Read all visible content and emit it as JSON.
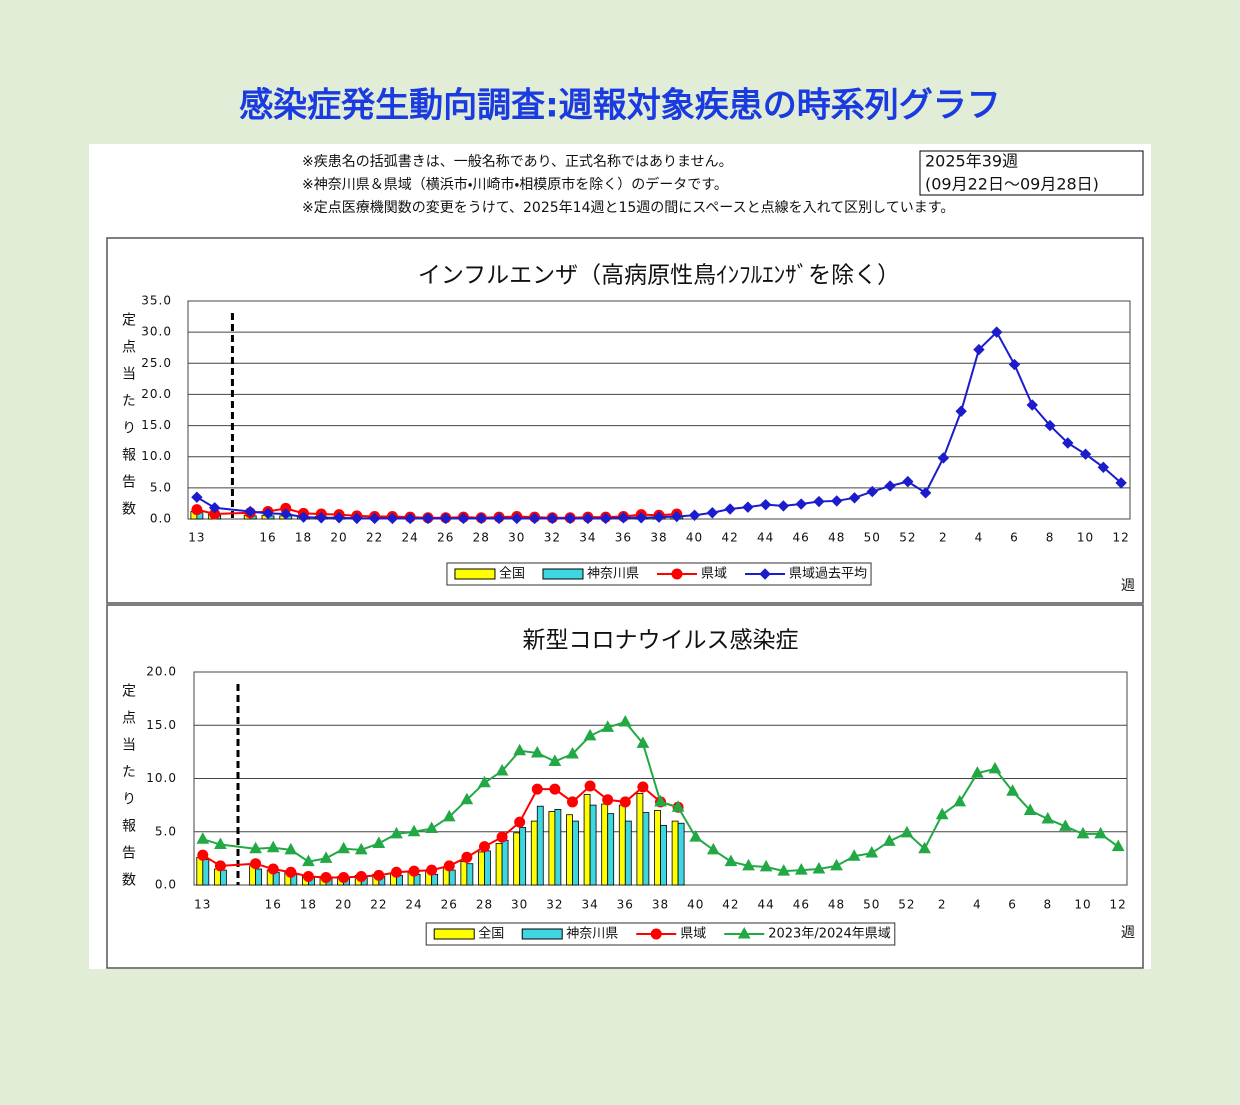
{
  "title": "感染症発生動向調査:週報対象疾患の時系列グラフ",
  "notes": [
    "※疾患名の括弧書きは、一般名称であり、正式名称ではありません。",
    "※神奈川県＆県域（横浜市・川崎市・相模原市を除く）のデータです。",
    "※定点医療機関数の変更をうけて、2025年14週と15週の間にスペースと点線を入れて区別しています。"
  ],
  "week_box": [
    "2025年39週",
    "(09月22日～09月28日)"
  ],
  "chart_data": [
    {
      "type": "combo",
      "title": "インフルエンザ（高病原性鳥ｲﾝﾌﾙｴﾝｻﾞを除く）",
      "y_axis_label": "定点当たり報告数",
      "x_axis_label": "週",
      "categories": [
        "13",
        null,
        null,
        "16",
        null,
        "18",
        null,
        "20",
        null,
        "22",
        null,
        "24",
        null,
        "26",
        null,
        "28",
        null,
        "30",
        null,
        "32",
        null,
        "34",
        null,
        "36",
        null,
        "38",
        null,
        "40",
        null,
        "42",
        null,
        "44",
        null,
        "46",
        null,
        "48",
        null,
        "50",
        null,
        "52",
        null,
        "2",
        null,
        "4",
        null,
        "6",
        null,
        "8",
        null,
        "10",
        null,
        "12"
      ],
      "ylim": [
        0,
        35
      ],
      "yticks": [
        {
          "value": 0,
          "label": "0.0"
        },
        {
          "value": 5,
          "label": "5.0"
        },
        {
          "value": 10,
          "label": "10.0"
        },
        {
          "value": 15,
          "label": "15.0"
        },
        {
          "value": 20,
          "label": "20.0"
        },
        {
          "value": 25,
          "label": "25.0"
        },
        {
          "value": 30,
          "label": "30.0"
        },
        {
          "value": 35,
          "label": "35.0"
        }
      ],
      "grid": true,
      "series": [
        {
          "name": "全国",
          "type": "bar",
          "color": "#ffff00",
          "values": [
            1.2,
            0.8,
            0.6,
            0.6,
            0.5,
            0.4,
            0.4,
            0.3,
            0.3,
            0.3,
            0.3,
            0.3,
            0.2,
            0.2,
            0.2,
            0.2,
            0.2,
            0.2,
            0.2,
            0.2,
            0.2,
            0.2,
            0.2,
            0.3,
            0.3,
            0.3,
            0.4,
            null,
            null,
            null,
            null,
            null,
            null,
            null,
            null,
            null,
            null,
            null,
            null,
            null,
            null,
            null,
            null,
            null,
            null,
            null,
            null,
            null,
            null,
            null,
            null,
            null
          ]
        },
        {
          "name": "神奈川県",
          "type": "bar",
          "color": "#3ed6e0",
          "values": [
            1.0,
            0.6,
            0.5,
            0.5,
            0.5,
            0.3,
            0.3,
            0.3,
            0.2,
            0.2,
            0.2,
            0.2,
            0.2,
            0.1,
            0.1,
            0.1,
            0.2,
            0.2,
            0.2,
            0.1,
            0.1,
            0.1,
            0.2,
            0.2,
            0.3,
            0.3,
            0.4,
            null,
            null,
            null,
            null,
            null,
            null,
            null,
            null,
            null,
            null,
            null,
            null,
            null,
            null,
            null,
            null,
            null,
            null,
            null,
            null,
            null,
            null,
            null,
            null,
            null
          ]
        },
        {
          "name": "県域",
          "type": "line",
          "marker": "circle",
          "color": "#ff0000",
          "values": [
            1.5,
            0.8,
            1.0,
            1.2,
            1.7,
            0.9,
            0.8,
            0.7,
            0.5,
            0.4,
            0.4,
            0.3,
            0.2,
            0.2,
            0.3,
            0.2,
            0.3,
            0.4,
            0.3,
            0.2,
            0.2,
            0.3,
            0.3,
            0.4,
            0.7,
            0.6,
            0.8,
            null,
            null,
            null,
            null,
            null,
            null,
            null,
            null,
            null,
            null,
            null,
            null,
            null,
            null,
            null,
            null,
            null,
            null,
            null,
            null,
            null,
            null,
            null,
            null,
            null
          ]
        },
        {
          "name": "県域過去平均",
          "type": "line",
          "marker": "diamond",
          "color": "#1c1ccc",
          "values": [
            3.5,
            1.8,
            1.2,
            0.9,
            0.8,
            0.3,
            0.2,
            0.2,
            0.1,
            0.1,
            0.1,
            0.1,
            0.1,
            0.1,
            0.1,
            0.1,
            0.1,
            0.1,
            0.1,
            0.1,
            0.1,
            0.1,
            0.1,
            0.2,
            0.2,
            0.3,
            0.4,
            0.6,
            1.0,
            1.6,
            1.9,
            2.3,
            2.1,
            2.4,
            2.8,
            2.9,
            3.4,
            4.4,
            5.3,
            6.0,
            4.2,
            9.8,
            17.3,
            27.2,
            30.0,
            24.8,
            18.3,
            15.0,
            12.2,
            10.4,
            8.3,
            5.8
          ]
        }
      ]
    },
    {
      "type": "combo",
      "title": "新型コロナウイルス感染症",
      "y_axis_label": "定点当たり報告数",
      "x_axis_label": "週",
      "categories": [
        "13",
        null,
        null,
        "16",
        null,
        "18",
        null,
        "20",
        null,
        "22",
        null,
        "24",
        null,
        "26",
        null,
        "28",
        null,
        "30",
        null,
        "32",
        null,
        "34",
        null,
        "36",
        null,
        "38",
        null,
        "40",
        null,
        "42",
        null,
        "44",
        null,
        "46",
        null,
        "48",
        null,
        "50",
        null,
        "52",
        null,
        "2",
        null,
        "4",
        null,
        "6",
        null,
        "8",
        null,
        "10",
        null,
        "12"
      ],
      "ylim": [
        0,
        20
      ],
      "yticks": [
        {
          "value": 0,
          "label": "0.0"
        },
        {
          "value": 5,
          "label": "5.0"
        },
        {
          "value": 10,
          "label": "10.0"
        },
        {
          "value": 15,
          "label": "15.0"
        },
        {
          "value": 20,
          "label": "20.0"
        }
      ],
      "grid": true,
      "series": [
        {
          "name": "全国",
          "type": "bar",
          "color": "#ffff00",
          "values": [
            2.6,
            1.5,
            1.8,
            1.4,
            1.2,
            0.9,
            0.8,
            0.8,
            0.9,
            1.0,
            1.1,
            1.2,
            1.3,
            1.6,
            2.2,
            3.1,
            3.9,
            4.9,
            6.0,
            6.9,
            6.6,
            8.5,
            7.6,
            7.5,
            8.6,
            7.0,
            6.0,
            null,
            null,
            null,
            null,
            null,
            null,
            null,
            null,
            null,
            null,
            null,
            null,
            null,
            null,
            null,
            null,
            null,
            null,
            null,
            null,
            null,
            null,
            null,
            null,
            null
          ]
        },
        {
          "name": "神奈川県",
          "type": "bar",
          "color": "#3ed6e0",
          "values": [
            2.4,
            1.4,
            1.5,
            1.2,
            1.0,
            0.7,
            0.7,
            0.6,
            0.7,
            0.8,
            0.9,
            1.0,
            1.0,
            1.4,
            2.0,
            3.2,
            4.2,
            5.4,
            7.4,
            7.1,
            6.0,
            7.5,
            6.7,
            6.0,
            6.8,
            5.6,
            5.8,
            null,
            null,
            null,
            null,
            null,
            null,
            null,
            null,
            null,
            null,
            null,
            null,
            null,
            null,
            null,
            null,
            null,
            null,
            null,
            null,
            null,
            null,
            null,
            null,
            null
          ]
        },
        {
          "name": "県域",
          "type": "line",
          "marker": "circle",
          "color": "#ff0000",
          "values": [
            2.8,
            1.8,
            2.0,
            1.5,
            1.2,
            0.8,
            0.7,
            0.7,
            0.8,
            0.9,
            1.2,
            1.3,
            1.4,
            1.8,
            2.6,
            3.6,
            4.5,
            5.9,
            9.0,
            9.0,
            7.8,
            9.3,
            8.0,
            7.8,
            9.2,
            7.8,
            7.3,
            null,
            null,
            null,
            null,
            null,
            null,
            null,
            null,
            null,
            null,
            null,
            null,
            null,
            null,
            null,
            null,
            null,
            null,
            null,
            null,
            null,
            null,
            null,
            null,
            null
          ]
        },
        {
          "name": "2023年/2024年県域",
          "type": "line",
          "marker": "triangle",
          "color": "#22a844",
          "values": [
            4.3,
            3.8,
            3.4,
            3.5,
            3.3,
            2.2,
            2.5,
            3.4,
            3.3,
            3.9,
            4.8,
            5.0,
            5.3,
            6.4,
            8.0,
            9.6,
            10.7,
            12.6,
            12.4,
            11.6,
            12.3,
            14.0,
            14.8,
            15.3,
            13.3,
            7.8,
            7.3,
            4.5,
            3.3,
            2.2,
            1.8,
            1.7,
            1.3,
            1.4,
            1.5,
            1.8,
            2.7,
            3.0,
            4.1,
            4.9,
            3.4,
            6.6,
            7.8,
            10.5,
            10.9,
            8.8,
            7.0,
            6.2,
            5.5,
            4.8,
            4.8,
            3.6
          ]
        }
      ]
    }
  ]
}
